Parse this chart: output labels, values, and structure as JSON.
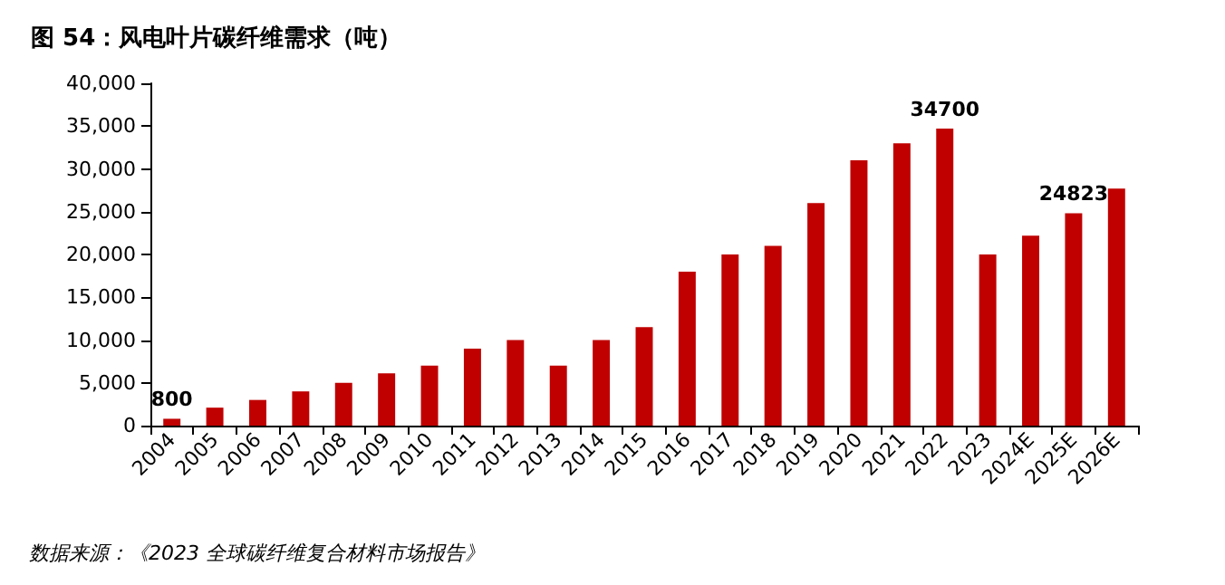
{
  "chart_data": {
    "type": "bar",
    "title": "图 54：风电叶片碳纤维需求（吨）",
    "categories": [
      "2004",
      "2005",
      "2006",
      "2007",
      "2008",
      "2009",
      "2010",
      "2011",
      "2012",
      "2013",
      "2014",
      "2015",
      "2016",
      "2017",
      "2018",
      "2019",
      "2020",
      "2021",
      "2022",
      "2023",
      "2024E",
      "2025E",
      "2026E"
    ],
    "values": [
      800,
      2100,
      3000,
      4000,
      5000,
      6100,
      7000,
      9000,
      10000,
      7000,
      10000,
      11500,
      18000,
      20000,
      21000,
      26000,
      31000,
      33000,
      34700,
      20000,
      22200,
      24823,
      27700
    ],
    "value_labels": [
      "800",
      null,
      null,
      null,
      null,
      null,
      null,
      null,
      null,
      null,
      null,
      null,
      null,
      null,
      null,
      null,
      null,
      null,
      "34700",
      null,
      null,
      "24823",
      null
    ],
    "color": "#c00000",
    "ylim": [
      0,
      40000
    ],
    "yticks": [
      {
        "value": 0,
        "label": "0"
      },
      {
        "value": 5000,
        "label": "5,000"
      },
      {
        "value": 10000,
        "label": "10,000"
      },
      {
        "value": 15000,
        "label": "15,000"
      },
      {
        "value": 20000,
        "label": "20,000"
      },
      {
        "value": 25000,
        "label": "25,000"
      },
      {
        "value": 30000,
        "label": "30,000"
      },
      {
        "value": 35000,
        "label": "35,000"
      },
      {
        "value": 40000,
        "label": "40,000"
      }
    ],
    "grid": false,
    "annotations": [
      "数据来源：《2023 全球碳纤维复合材料市场报告》"
    ]
  }
}
